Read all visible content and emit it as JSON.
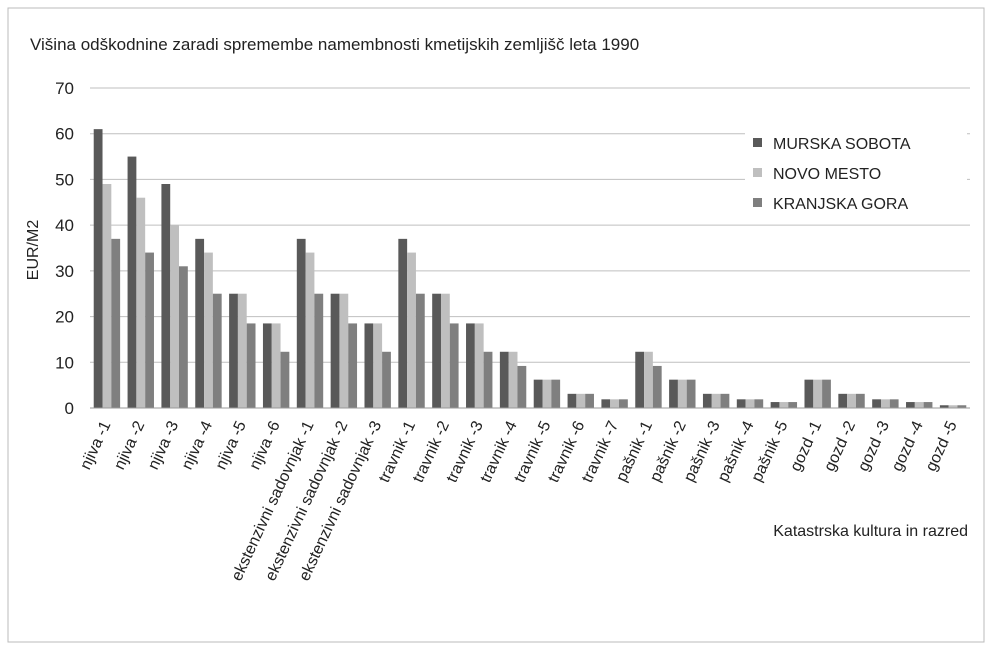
{
  "chart_data": {
    "type": "bar",
    "title": "Višina odškodnine zaradi spremembe namembnosti kmetijskih zemljišč leta 1990",
    "y_label": "EUR/M2",
    "x_label": "Katastrska kultura in razred",
    "categories": [
      "njiva -1",
      "njiva -2",
      "njiva -3",
      "njiva -4",
      "njiva -5",
      "njiva -6",
      "ekstenzivni sadovnjak -1",
      "ekstenzivni sadovnjak -2",
      "ekstenzivni sadovnjak -3",
      "travnik -1",
      "travnik -2",
      "travnik -3",
      "travnik -4",
      "travnik -5",
      "travnik -6",
      "travnik -7",
      "pašnik -1",
      "pašnik -2",
      "pašnik -3",
      "pašnik -4",
      "pašnik -5",
      "gozd -1",
      "gozd -2",
      "gozd -3",
      "gozd -4",
      "gozd -5"
    ],
    "series": [
      {
        "name": "MURSKA SOBOTA",
        "color": "#595959",
        "values": [
          61,
          55,
          49,
          37,
          25,
          18.5,
          37,
          25,
          18.5,
          37,
          25,
          18.5,
          12.3,
          6.2,
          3.1,
          1.9,
          12.3,
          6.2,
          3.1,
          1.9,
          1.3,
          6.2,
          3.1,
          1.9,
          1.3,
          0.6
        ]
      },
      {
        "name": "NOVO MESTO",
        "color": "#bfbfbf",
        "values": [
          49,
          46,
          40,
          34,
          25,
          18.5,
          34,
          25,
          18.5,
          34,
          25,
          18.5,
          12.3,
          6.2,
          3.1,
          1.9,
          12.3,
          6.2,
          3.1,
          1.9,
          1.3,
          6.2,
          3.1,
          1.9,
          1.3,
          0.6
        ]
      },
      {
        "name": "KRANJSKA GORA",
        "color": "#7f7f7f",
        "values": [
          37,
          34,
          31,
          25,
          18.5,
          12.3,
          25,
          18.5,
          12.3,
          25,
          18.5,
          12.3,
          9.2,
          6.2,
          3.1,
          1.9,
          9.2,
          6.2,
          3.1,
          1.9,
          1.3,
          6.2,
          3.1,
          1.9,
          1.3,
          0.6
        ]
      }
    ],
    "ylim": [
      0,
      70
    ],
    "yticks": [
      0,
      10,
      20,
      30,
      40,
      50,
      60,
      70
    ],
    "grid": true,
    "legend": "upper-right"
  }
}
